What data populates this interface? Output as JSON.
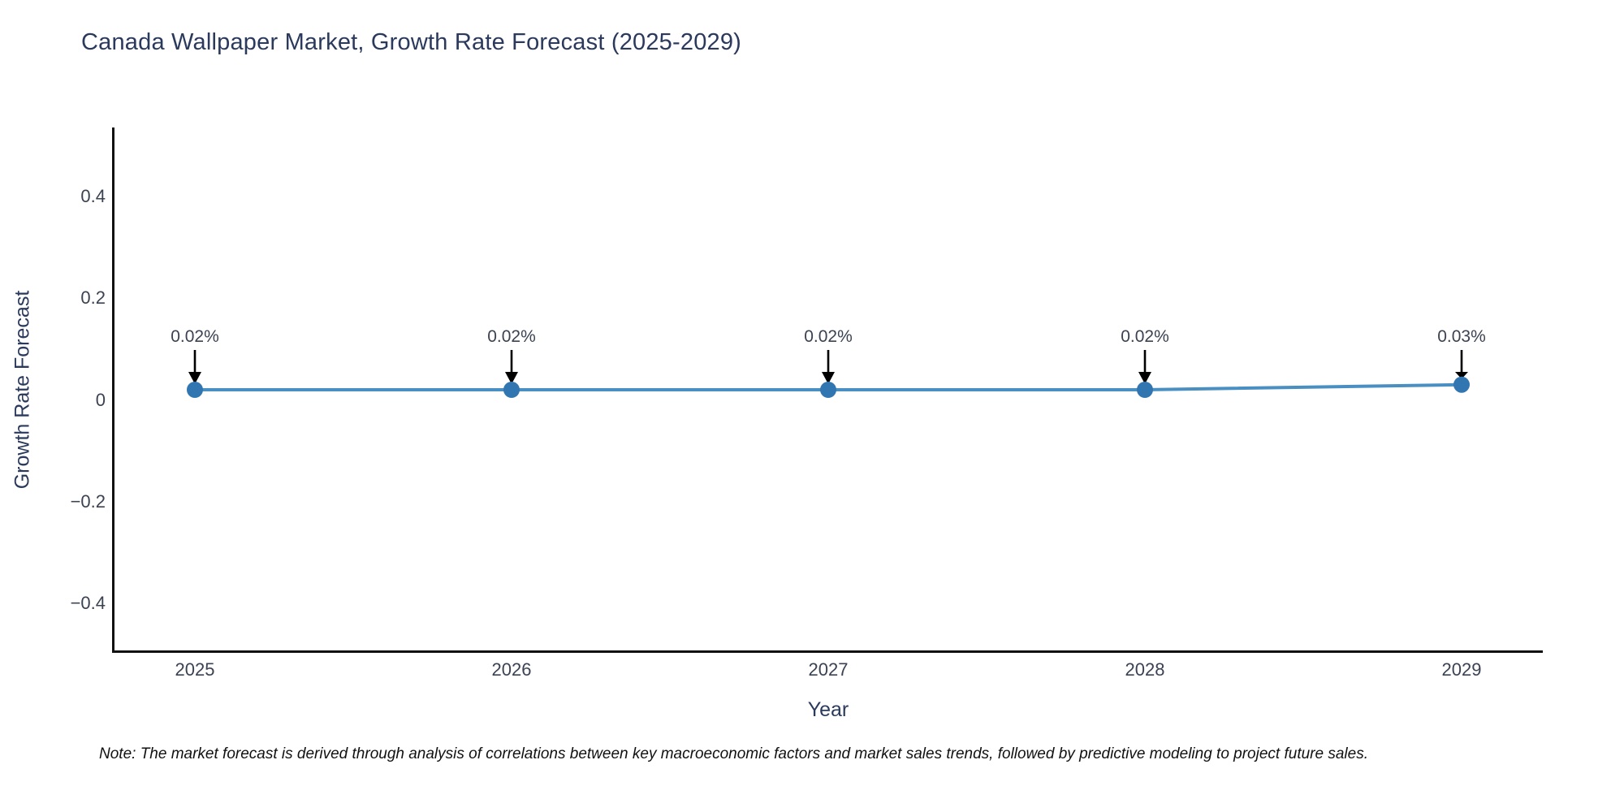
{
  "note": "Note: The market forecast is derived through analysis of correlations between key macroeconomic factors and market sales trends, followed by predictive modeling to project future sales.",
  "colors": {
    "title_text": "#2b3a5c",
    "tick_text": "#3b4252",
    "line": "#4a8fc2",
    "marker": "#3276b1",
    "arrow": "#000000",
    "spine": "#111111"
  },
  "chart_data": {
    "type": "line",
    "title": "Canada Wallpaper Market, Growth Rate Forecast (2025-2029)",
    "xlabel": "Year",
    "ylabel": "Growth Rate Forecast",
    "categories": [
      "2025",
      "2026",
      "2027",
      "2028",
      "2029"
    ],
    "series": [
      {
        "name": "Growth Rate Forecast",
        "values": [
          0.02,
          0.02,
          0.02,
          0.02,
          0.03
        ]
      }
    ],
    "point_labels": [
      "0.02%",
      "0.02%",
      "0.02%",
      "0.02%",
      "0.03%"
    ],
    "yticks": [
      {
        "label": "0.4",
        "value": 0.4
      },
      {
        "label": "0.2",
        "value": 0.2
      },
      {
        "label": "0",
        "value": 0
      },
      {
        "label": "−0.2",
        "value": -0.2
      },
      {
        "label": "−0.4",
        "value": -0.4
      }
    ],
    "ylim": [
      -0.495,
      0.535
    ],
    "grid": false,
    "legend": false,
    "annotations_arrow": "down-arrow"
  }
}
